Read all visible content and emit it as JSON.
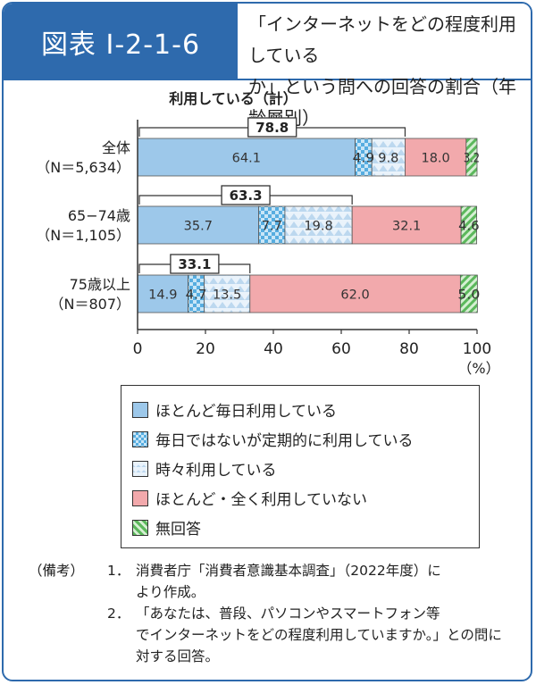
{
  "figure": {
    "label": "図表 I-2-1-6",
    "title_line1": "「インターネットをどの程度利用している",
    "title_line2": "か」という問への回答の割合（年齢層別）"
  },
  "chart_data": {
    "type": "bar",
    "orientation": "horizontal",
    "stacked": true,
    "title": "利用している（計）",
    "categories": [
      {
        "label": "全体",
        "sublabel": "（N＝5,634）"
      },
      {
        "label": "65−74歳",
        "sublabel": "（N＝1,105）"
      },
      {
        "label": "75歳以上",
        "sublabel": "（N＝807）"
      }
    ],
    "series": [
      {
        "name": "ほとんど毎日利用している",
        "values": [
          64.1,
          35.7,
          14.9
        ],
        "labels": [
          "64.1",
          "35.7",
          "14.9"
        ],
        "color": "#9dc8ea",
        "pattern": "solid"
      },
      {
        "name": "毎日ではないが定期的に利用している",
        "values": [
          4.9,
          7.7,
          4.7
        ],
        "labels": [
          "4.9",
          "7.7",
          "4.7"
        ],
        "color": "#57ade0",
        "pattern": "checker"
      },
      {
        "name": "時々利用している",
        "values": [
          9.8,
          19.8,
          13.5
        ],
        "labels": [
          "9.8",
          "19.8",
          "13.5"
        ],
        "color": "#cfe2f3",
        "pattern": "triangles"
      },
      {
        "name": "ほとんど・全く利用していない",
        "values": [
          18.0,
          32.1,
          62.0
        ],
        "labels": [
          "18.0",
          "32.1",
          "62.0"
        ],
        "color": "#f2a9ac",
        "pattern": "solid"
      },
      {
        "name": "無回答",
        "values": [
          3.2,
          4.6,
          5.0
        ],
        "labels": [
          "3.2",
          "4.6",
          "5.0"
        ],
        "color": "#5cb85c",
        "pattern": "stripes"
      }
    ],
    "bracket_totals": [
      "78.8",
      "63.3",
      "33.1"
    ],
    "x_ticks": [
      "0",
      "20",
      "40",
      "60",
      "80",
      "100"
    ],
    "xlim": [
      0,
      100
    ],
    "x_unit": "（%）",
    "grid": false,
    "legend_position": "bottom"
  },
  "notes": {
    "head": "（備考）",
    "items": [
      {
        "num": "1．",
        "lines": [
          "消費者庁「消費者意識基本調査」（2022年度）に",
          "より作成。"
        ]
      },
      {
        "num": "2．",
        "lines": [
          "「あなたは、普段、パソコンやスマートフォン等",
          "でインターネットをどの程度利用していますか。」との問に対する回答。"
        ]
      }
    ]
  }
}
